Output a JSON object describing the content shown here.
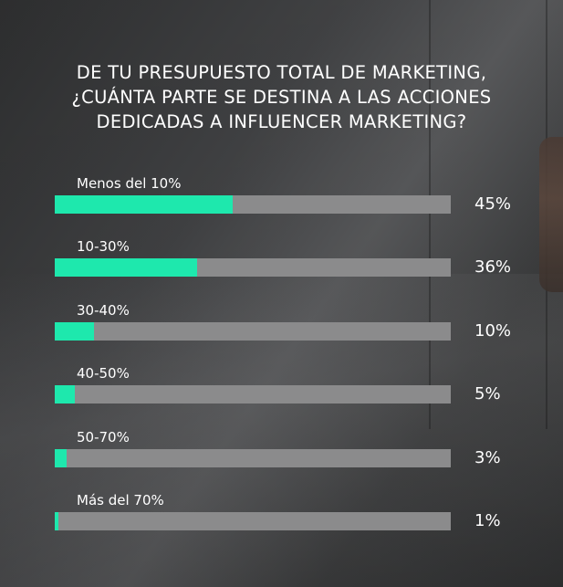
{
  "chart_data": {
    "type": "bar",
    "orientation": "horizontal",
    "title": "DE TU PRESUPUESTO TOTAL DE MARKETING, ¿CUÁNTA PARTE SE DESTINA A LAS ACCIONES DEDICADAS A INFLUENCER MARKETING?",
    "categories": [
      "Menos del 10%",
      "10-30%",
      "30-40%",
      "40-50%",
      "50-70%",
      "Más del 70%"
    ],
    "values": [
      45,
      36,
      10,
      5,
      3,
      1
    ],
    "value_labels": [
      "45%",
      "36%",
      "10%",
      "5%",
      "3%",
      "1%"
    ],
    "xlim": [
      0,
      100
    ],
    "grid": false,
    "legend": "none"
  },
  "colors": {
    "bar_fill": "#1ee8ad",
    "bar_track": "#8b8b8c",
    "text": "#ffffff"
  }
}
